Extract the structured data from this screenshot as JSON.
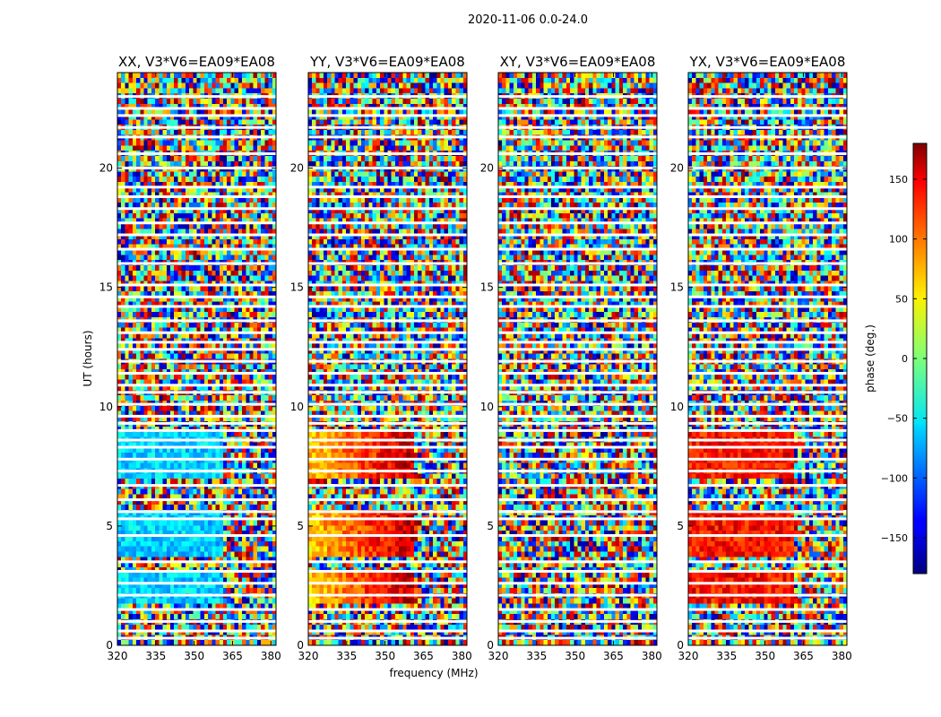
{
  "figure_title": "2020-11-06 0.0-24.0",
  "chart_data": {
    "type": "heatmap",
    "suptitle": "2020-11-06 0.0-24.0",
    "colormap": "jet",
    "xlabel": "frequency (MHz)",
    "ylabel": "UT (hours)",
    "xlim": [
      320,
      382
    ],
    "ylim": [
      0,
      24
    ],
    "xticks": [
      "320",
      "335",
      "350",
      "365",
      "380"
    ],
    "xtick_values": [
      320,
      335,
      350,
      365,
      380
    ],
    "yticks": [
      "0",
      "5",
      "10",
      "15",
      "20"
    ],
    "ytick_values": [
      0,
      5,
      10,
      15,
      20
    ],
    "panels": [
      {
        "title": "XX, V3*V6=EA09*EA08",
        "product": "XX",
        "coherent_phase_deg": -60,
        "phase_gradient": 0
      },
      {
        "title": "YY, V3*V6=EA09*EA08",
        "product": "YY",
        "coherent_phase_deg": 60,
        "phase_gradient": 1
      },
      {
        "title": "XY, V3*V6=EA09*EA08",
        "product": "XY",
        "coherent_phase_deg": null,
        "phase_gradient": 0
      },
      {
        "title": "YX, V3*V6=EA09*EA08",
        "product": "YX",
        "coherent_phase_deg": 130,
        "phase_gradient": 0
      }
    ],
    "coherent_ut_ranges": [
      [
        1.8,
        3.0
      ],
      [
        3.8,
        5.6
      ],
      [
        7.0,
        9.0
      ]
    ],
    "coherent_freq_max_mhz": 362,
    "flagged_ut_hours": [
      0.3,
      0.6,
      1.0,
      1.5,
      2.1,
      2.6,
      3.1,
      3.5,
      4.6,
      5.3,
      5.6,
      6.1,
      6.7,
      7.3,
      7.8,
      8.3,
      8.6,
      9.0,
      9.3,
      9.6,
      10.1,
      10.6,
      10.9,
      11.4,
      11.9,
      12.4,
      12.7,
      13.1,
      13.6,
      14.2,
      14.6,
      15.1,
      16.0,
      16.6,
      17.2,
      17.7,
      18.3,
      18.8,
      19.2,
      20.0,
      20.6,
      21.3,
      21.7,
      22.2,
      22.5,
      23.0
    ],
    "colorbar": {
      "label": "phase (deg.)",
      "range": [
        -180,
        180
      ],
      "ticks": [
        "150",
        "100",
        "50",
        "0",
        "−50",
        "−100",
        "−150"
      ],
      "tick_values": [
        150,
        100,
        50,
        0,
        -50,
        -100,
        -150
      ]
    }
  }
}
